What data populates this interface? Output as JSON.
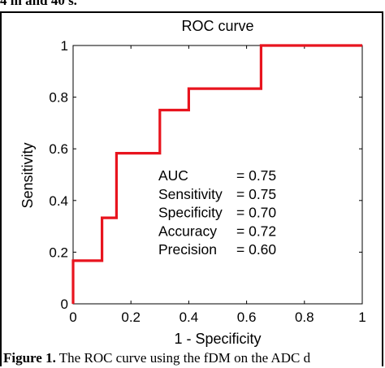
{
  "top_text": "4 m and 40 s.",
  "caption": {
    "bullet": "",
    "lead": "Figure 1.",
    "text": " The ROC curve using the fDM on the ADC d"
  },
  "chart_data": {
    "type": "line",
    "title": "ROC curve",
    "xlabel": "1 - Specificity",
    "ylabel": "Sensitivity",
    "xlim": [
      0,
      1
    ],
    "ylim": [
      0,
      1
    ],
    "x_ticks": [
      0,
      0.2,
      0.4,
      0.6,
      0.8,
      1
    ],
    "y_ticks": [
      0,
      0.2,
      0.4,
      0.6,
      0.8,
      1
    ],
    "x_tick_labels": [
      "0",
      "0.2",
      "0.4",
      "0.6",
      "0.8",
      "1"
    ],
    "y_tick_labels": [
      "0",
      "0.2",
      "0.4",
      "0.6",
      "0.8",
      "1"
    ],
    "grid": false,
    "series": [
      {
        "color": "#e8141e",
        "x": [
          0,
          0,
          0.1,
          0.1,
          0.15,
          0.15,
          0.3,
          0.3,
          0.4,
          0.4,
          0.65,
          0.65,
          1
        ],
        "y": [
          0,
          0.167,
          0.167,
          0.333,
          0.333,
          0.583,
          0.583,
          0.75,
          0.75,
          0.833,
          0.833,
          1,
          1
        ]
      }
    ],
    "annotations": [
      {
        "label": "AUC",
        "value": "= 0.75"
      },
      {
        "label": "Sensitivity",
        "value": "= 0.75"
      },
      {
        "label": "Specificity",
        "value": "= 0.70"
      },
      {
        "label": "Accuracy",
        "value": "= 0.72"
      },
      {
        "label": "Precision",
        "value": "= 0.60"
      }
    ]
  }
}
